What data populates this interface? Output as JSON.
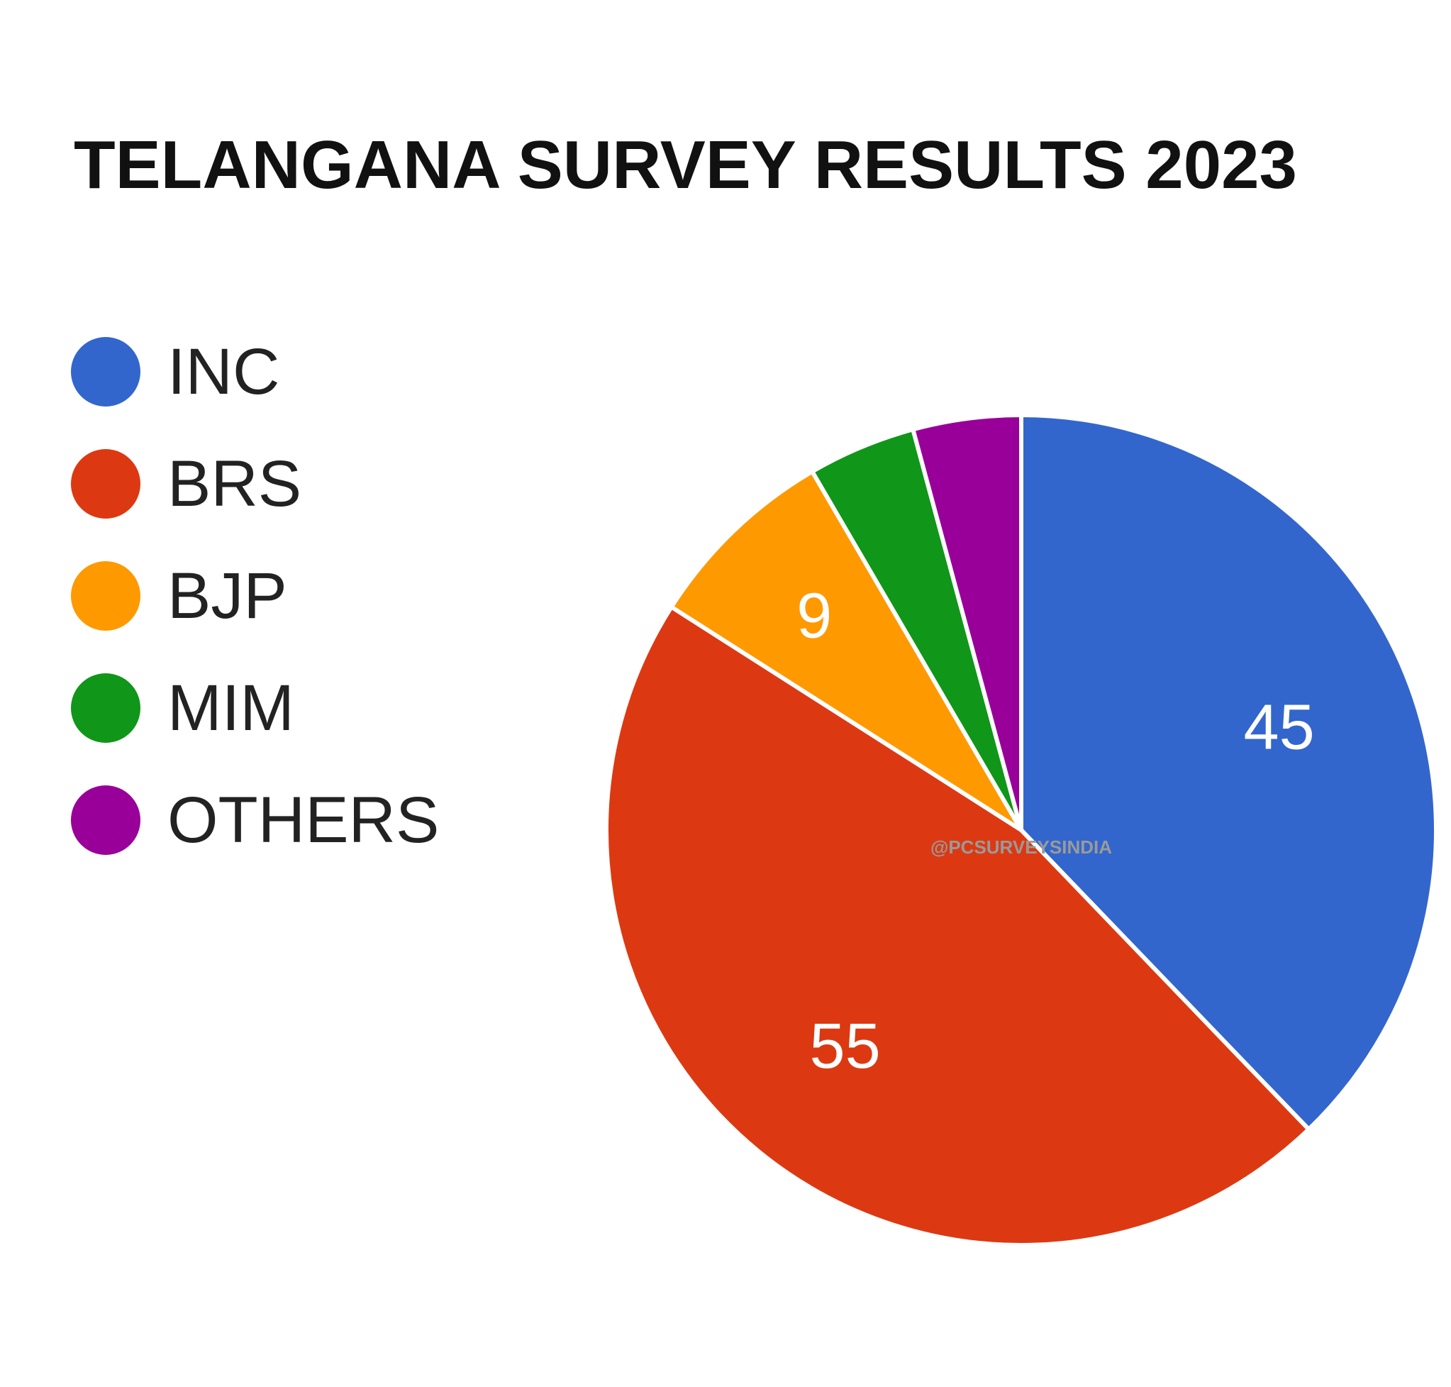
{
  "chart_data": {
    "type": "pie",
    "title": "TELANGANA SURVEY RESULTS 2023",
    "categories": [
      "INC",
      "BRS",
      "BJP",
      "MIM",
      "OTHERS"
    ],
    "values": [
      45,
      55,
      9,
      5,
      5
    ],
    "data_labels": [
      "45",
      "55",
      "9",
      "",
      ""
    ],
    "colors": [
      "#3366cc",
      "#dc3912",
      "#ff9900",
      "#109618",
      "#990099"
    ],
    "legend": "left",
    "start_angle_deg": 0,
    "direction": "clockwise"
  },
  "watermark": "@PCSURVEYSINDIA"
}
